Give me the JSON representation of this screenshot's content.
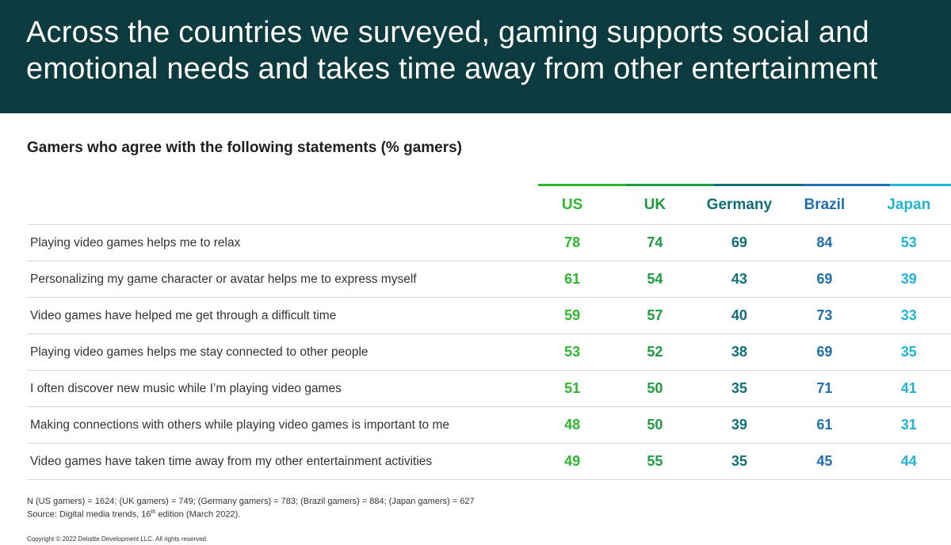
{
  "title": "Across the countries we surveyed, gaming supports social and emotional needs and takes time away from other entertainment",
  "subtitle": "Gamers who agree with the following statements (% gamers)",
  "colors": {
    "header_bg": "#0c3b3f",
    "US": "#2eb82e",
    "UK": "#1e9a3f",
    "Germany": "#0f6f78",
    "Brazil": "#1f6fb0",
    "Japan": "#22b4d6"
  },
  "chart_data": {
    "type": "table",
    "title": "Gamers who agree with the following statements (% gamers)",
    "columns": [
      "US",
      "UK",
      "Germany",
      "Brazil",
      "Japan"
    ],
    "rows": [
      {
        "label": "Playing video games helps me to relax",
        "values": [
          78,
          74,
          69,
          84,
          53
        ]
      },
      {
        "label": "Personalizing my game character or avatar helps me to express myself",
        "values": [
          61,
          54,
          43,
          69,
          39
        ]
      },
      {
        "label": "Video games have helped me get through a difficult time",
        "values": [
          59,
          57,
          40,
          73,
          33
        ]
      },
      {
        "label": "Playing video games helps me stay connected to other people",
        "values": [
          53,
          52,
          38,
          69,
          35
        ]
      },
      {
        "label": "I often discover new music while I’m playing video games",
        "values": [
          51,
          50,
          35,
          71,
          41
        ]
      },
      {
        "label": "Making connections with others while playing video games is important to me",
        "values": [
          48,
          50,
          39,
          61,
          31
        ]
      },
      {
        "label": "Video games have taken time away from my other entertainment activities",
        "values": [
          49,
          55,
          35,
          45,
          44
        ]
      }
    ]
  },
  "notes": {
    "sample": "N (US gamers) = 1624; (UK gamers) = 749; (Germany gamers) = 783; (Brazil gamers) = 884; (Japan gamers) = 627",
    "source": "Source: Digital media trends, 16th edition (March 2022)."
  },
  "copyright": "Copyright © 2022 Deloitte Development LLC. All rights reserved."
}
